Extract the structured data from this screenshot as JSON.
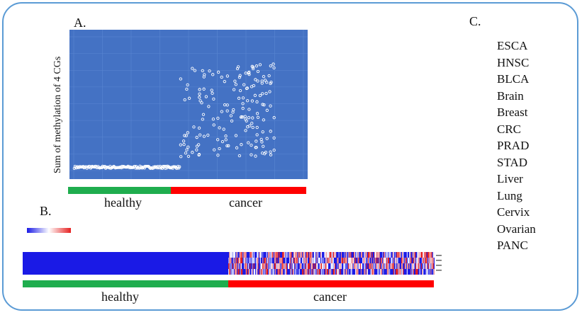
{
  "panels": {
    "a": "A.",
    "b": "B.",
    "c": "C."
  },
  "groups": {
    "healthy": "healthy",
    "cancer": "cancer"
  },
  "colors": {
    "plot_bg": "#4472c4",
    "healthy": "#1fad4e",
    "cancer": "#ff0000",
    "heat_low": "#1a1ae6",
    "heat_high": "#e62020",
    "point": "#ffffff"
  },
  "cancer_types": [
    "ESCA",
    "HNSC",
    "BLCA",
    "Brain",
    "Breast",
    "CRC",
    "PRAD",
    "STAD",
    "Liver",
    "Lung",
    "Cervix",
    "Ovarian",
    "PANC"
  ],
  "chart_data": [
    {
      "type": "scatter",
      "title": "",
      "xlabel": "",
      "ylabel": "Sum of methylation of 4 CGs",
      "xlim": [
        0,
        400
      ],
      "ylim": [
        0,
        4
      ],
      "grid": true,
      "series": [
        {
          "name": "healthy",
          "x_range": [
            1,
            185
          ],
          "y_approx": 0.1
        },
        {
          "name": "cancer",
          "x_range": [
            186,
            350
          ],
          "y_range": [
            0.4,
            3.2
          ]
        }
      ]
    },
    {
      "type": "heatmap",
      "title": "",
      "rows": 4,
      "columns": {
        "healthy": "uniformly low (blue)",
        "cancer": "mixed high/low (red/white/blue)"
      },
      "colorscale": [
        "blue",
        "white",
        "red"
      ]
    }
  ]
}
